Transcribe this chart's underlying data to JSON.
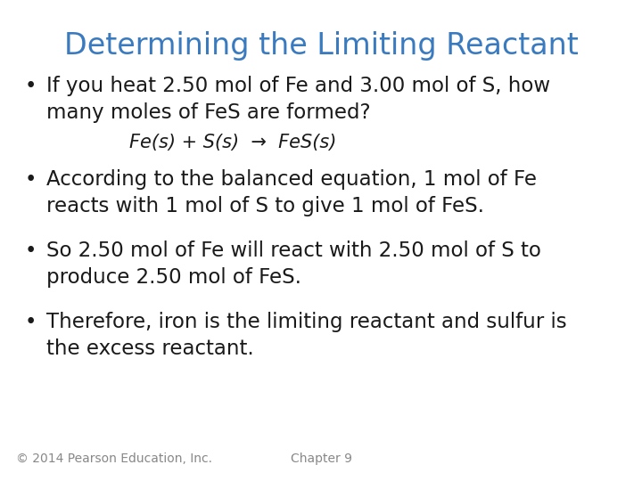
{
  "title": "Determining the Limiting Reactant",
  "title_color": "#3a7abf",
  "background_color": "#ffffff",
  "bullet1_line1": "If you heat 2.50 mol of Fe and 3.00 mol of S, how",
  "bullet1_line2": "many moles of FeS are formed?",
  "equation": "Fe(s) + S(s)  →  FeS(s)",
  "bullet2_line1": "According to the balanced equation, 1 mol of Fe",
  "bullet2_line2": "reacts with 1 mol of S to give 1 mol of FeS.",
  "bullet3_line1": "So 2.50 mol of Fe will react with 2.50 mol of S to",
  "bullet3_line2": "produce 2.50 mol of FeS.",
  "bullet4_line1": "Therefore, iron is the limiting reactant and sulfur is",
  "bullet4_line2": "the excess reactant.",
  "footer_left": "© 2014 Pearson Education, Inc.",
  "footer_center": "Chapter 9",
  "text_color": "#1a1a1a",
  "footer_color": "#888888",
  "bullet_fontsize": 16.5,
  "equation_fontsize": 15,
  "title_fontsize": 24,
  "footer_fontsize": 10
}
